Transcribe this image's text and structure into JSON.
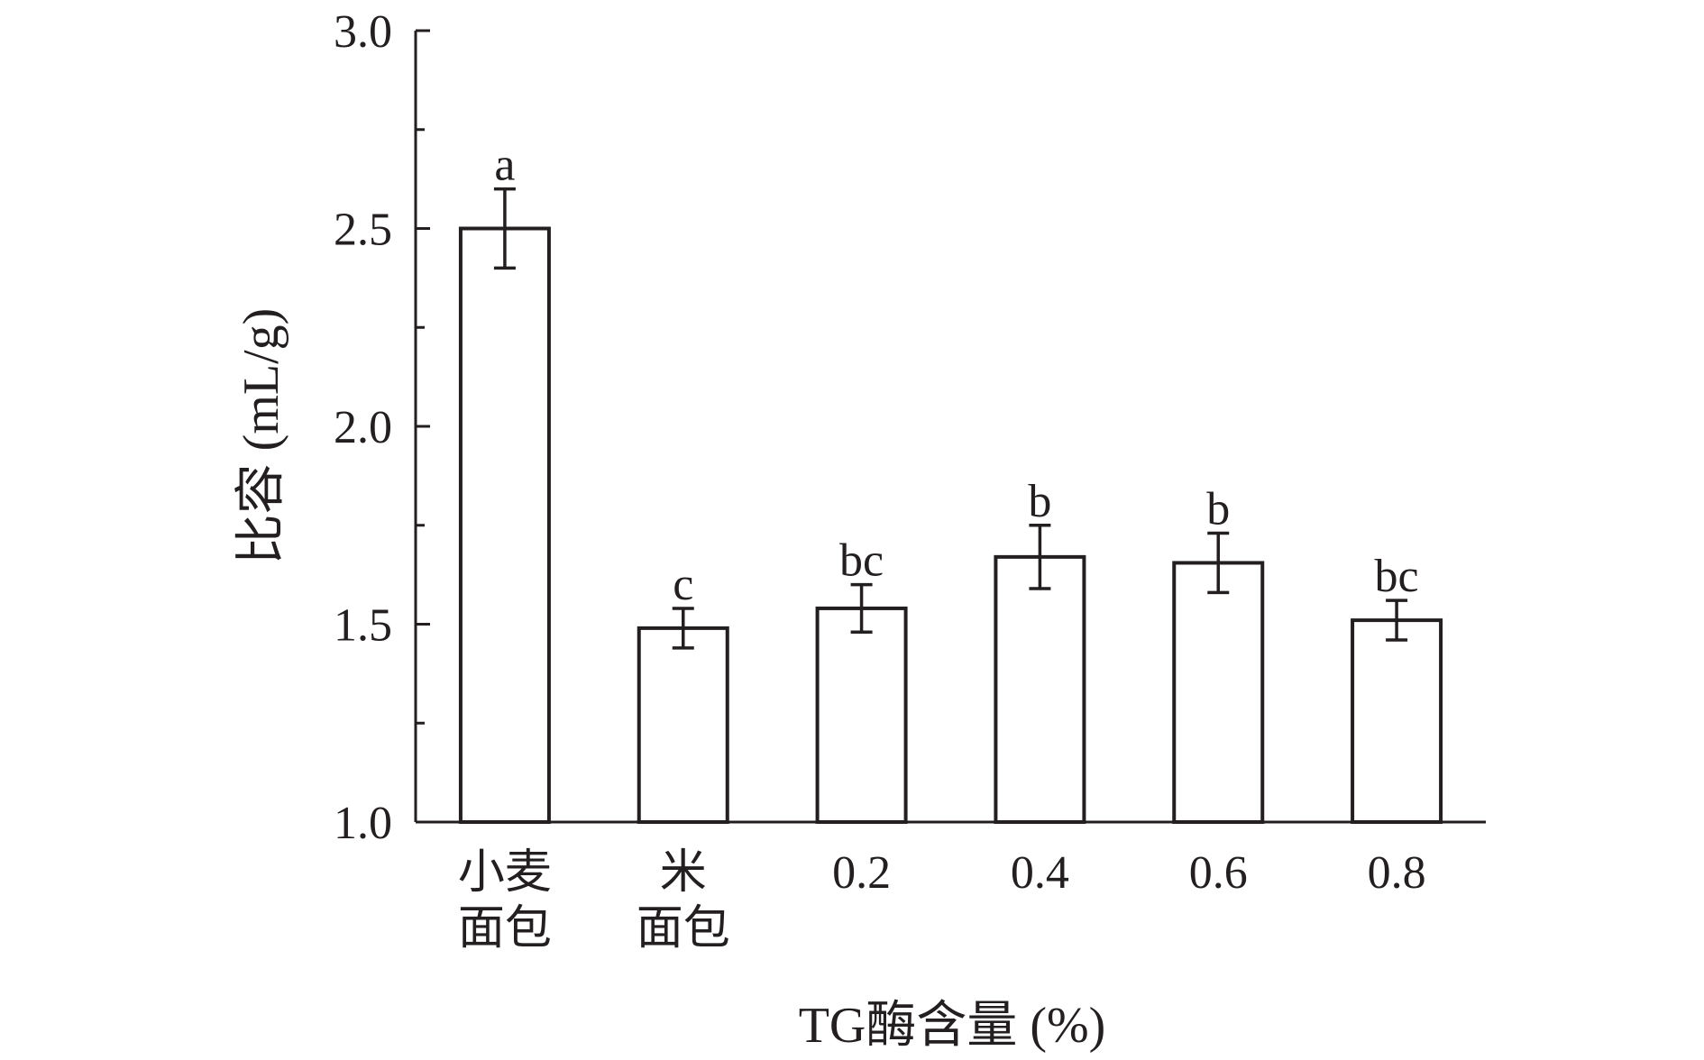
{
  "chart_data": {
    "type": "bar",
    "categories": [
      [
        "小麦",
        "面包"
      ],
      [
        "米",
        "面包"
      ],
      [
        "0.2"
      ],
      [
        "0.4"
      ],
      [
        "0.6"
      ],
      [
        "0.8"
      ]
    ],
    "values": [
      2.5,
      1.49,
      1.54,
      1.67,
      1.655,
      1.51
    ],
    "errors": [
      0.1,
      0.05,
      0.06,
      0.08,
      0.075,
      0.05
    ],
    "significance": [
      "a",
      "c",
      "bc",
      "b",
      "b",
      "bc"
    ],
    "xlabel": "TG酶含量 (%)",
    "ylabel": "比容 (mL/g)",
    "ylim": [
      1.0,
      3.0
    ],
    "yticks": [
      "1.0",
      "1.5",
      "2.0",
      "2.5",
      "3.0"
    ],
    "minor_ticks": true,
    "grid": false,
    "colors": {
      "bar_fill": "#ffffff",
      "stroke": "#231f20"
    }
  }
}
